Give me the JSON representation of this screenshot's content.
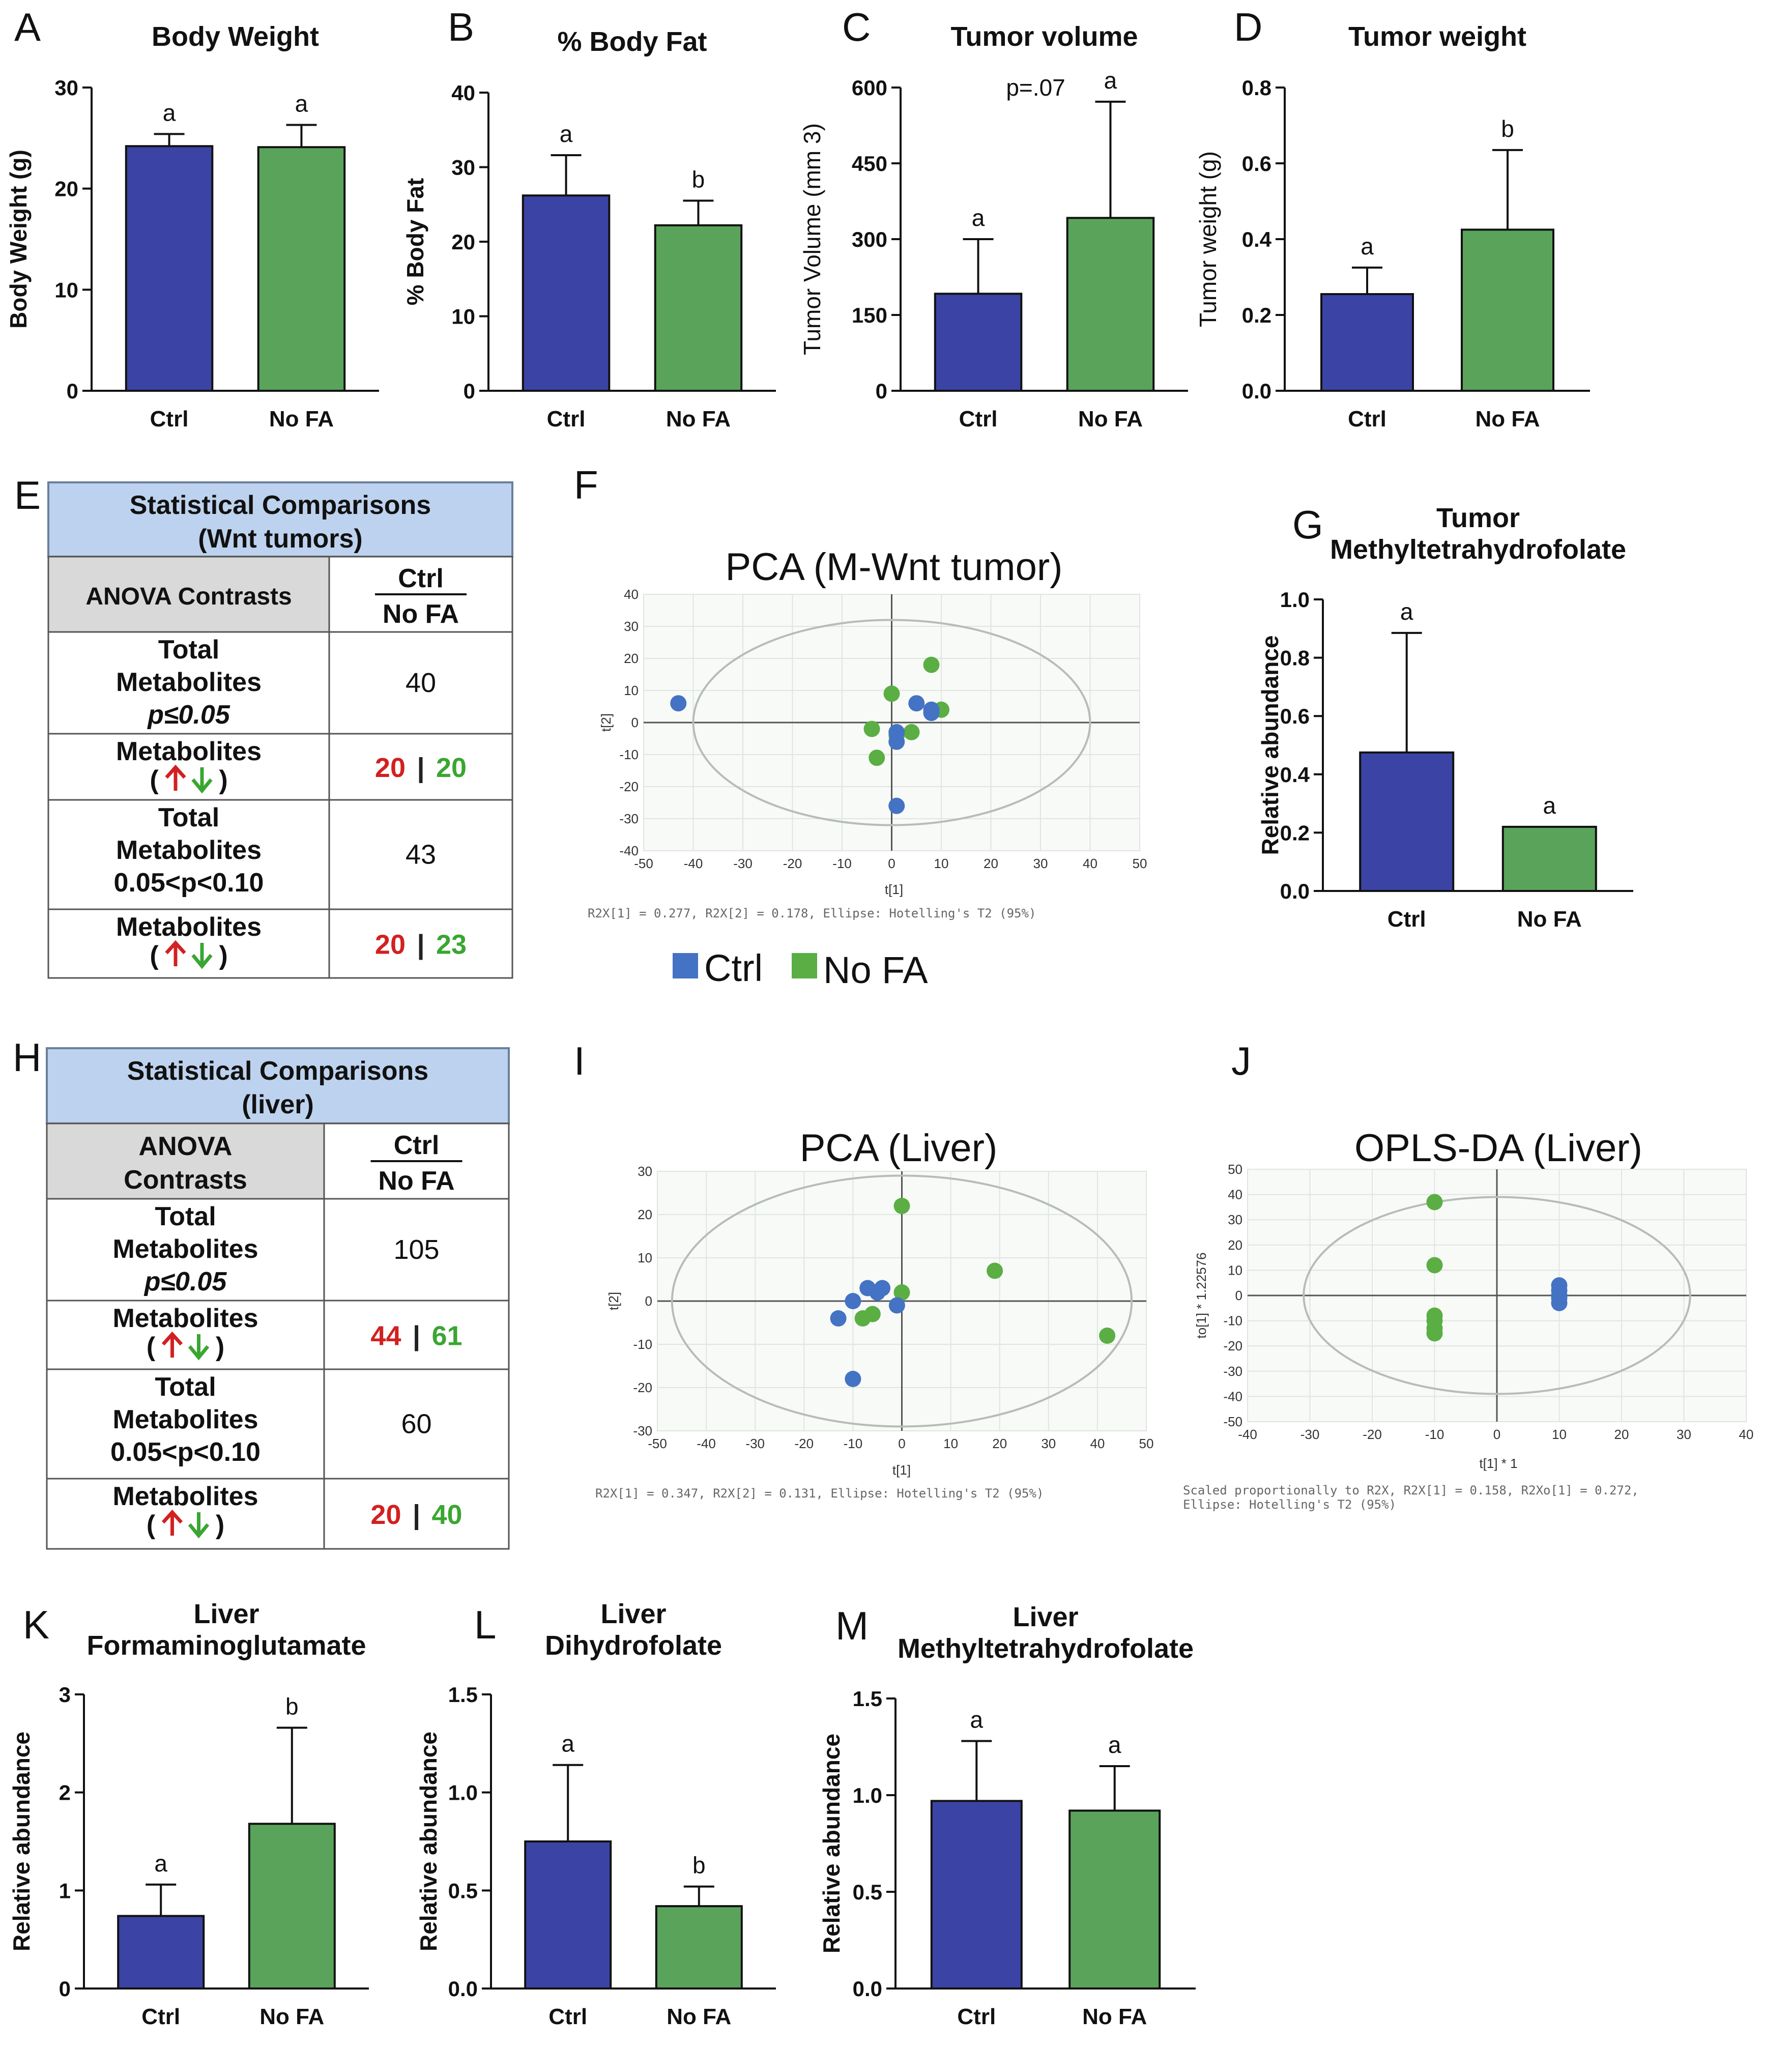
{
  "colors": {
    "ctrl": "#3b44a4",
    "nofa": "#59a45a",
    "ctrl_dot": "#4472c4",
    "nofa_dot": "#5aae44",
    "up_arrow": "#d22020",
    "down_arrow": "#3aa632",
    "table_header": "#bdd2ee",
    "table_grey": "#d9d9d9"
  },
  "bar_panels": [
    {
      "letter": "A",
      "title": "Body Weight",
      "ylabel": "Body Weight (g)",
      "ylabel_bold": true,
      "yticks": [
        "0",
        "10",
        "20",
        "30"
      ],
      "ymax": 30,
      "categories": [
        "Ctrl",
        "No FA"
      ],
      "values": [
        24.2,
        24.1
      ],
      "errors": [
        1.2,
        2.2
      ],
      "sig": [
        "a",
        "a"
      ],
      "extra": ""
    },
    {
      "letter": "B",
      "title": "% Body Fat",
      "ylabel": "% Body Fat",
      "ylabel_bold": true,
      "yticks": [
        "0",
        "10",
        "20",
        "30",
        "40"
      ],
      "ymax": 40,
      "categories": [
        "Ctrl",
        "No FA"
      ],
      "values": [
        26.2,
        22.2
      ],
      "errors": [
        5.4,
        3.3
      ],
      "sig": [
        "a",
        "b"
      ],
      "extra": ""
    },
    {
      "letter": "C",
      "title": "Tumor volume",
      "ylabel": "Tumor Volume (mm 3)",
      "ylabel_bold": false,
      "yticks": [
        "0",
        "150",
        "300",
        "450",
        "600"
      ],
      "ymax": 600,
      "categories": [
        "Ctrl",
        "No FA"
      ],
      "values": [
        192,
        342
      ],
      "errors": [
        108,
        230
      ],
      "sig": [
        "a",
        "a"
      ],
      "extra": "p=.07"
    },
    {
      "letter": "D",
      "title": "Tumor weight",
      "ylabel": "Tumor weight (g)",
      "ylabel_bold": false,
      "yticks": [
        "0.0",
        "0.2",
        "0.4",
        "0.6",
        "0.8"
      ],
      "ymax": 0.8,
      "categories": [
        "Ctrl",
        "No FA"
      ],
      "values": [
        0.255,
        0.425
      ],
      "errors": [
        0.07,
        0.21
      ],
      "sig": [
        "a",
        "b"
      ],
      "extra": ""
    },
    {
      "letter": "G",
      "title": "Tumor",
      "title2": "Methyltetrahydrofolate",
      "ylabel": "Relative abundance",
      "ylabel_bold": true,
      "yticks": [
        "0.0",
        "0.2",
        "0.4",
        "0.6",
        "0.8",
        "1.0"
      ],
      "ymax": 1.0,
      "categories": [
        "Ctrl",
        "No FA"
      ],
      "values": [
        0.475,
        0.22
      ],
      "errors": [
        0.41,
        0.0
      ],
      "sig": [
        "a",
        "a"
      ],
      "extra": ""
    },
    {
      "letter": "K",
      "title": "Liver",
      "title2": "Formaminoglutamate",
      "ylabel": "Relative abundance",
      "ylabel_bold": true,
      "yticks": [
        "0",
        "1",
        "2",
        "3"
      ],
      "ymax": 3,
      "categories": [
        "Ctrl",
        "No FA"
      ],
      "values": [
        0.74,
        1.68
      ],
      "errors": [
        0.32,
        0.98
      ],
      "sig": [
        "a",
        "b"
      ],
      "extra": ""
    },
    {
      "letter": "L",
      "title": "Liver",
      "title2": "Dihydrofolate",
      "ylabel": "Relative abundance",
      "ylabel_bold": true,
      "yticks": [
        "0.0",
        "0.5",
        "1.0",
        "1.5"
      ],
      "ymax": 1.5,
      "categories": [
        "Ctrl",
        "No FA"
      ],
      "values": [
        0.75,
        0.42
      ],
      "errors": [
        0.39,
        0.1
      ],
      "sig": [
        "a",
        "b"
      ],
      "extra": ""
    },
    {
      "letter": "M",
      "title": "Liver",
      "title2": "Methyltetrahydrofolate",
      "ylabel": "Relative abundance",
      "ylabel_bold": true,
      "yticks": [
        "0.0",
        "0.5",
        "1.0",
        "1.5"
      ],
      "ymax": 1.5,
      "categories": [
        "Ctrl",
        "No FA"
      ],
      "values": [
        0.97,
        0.92
      ],
      "errors": [
        0.31,
        0.23
      ],
      "sig": [
        "a",
        "a"
      ],
      "extra": ""
    }
  ],
  "scatter_panels": [
    {
      "letter": "F",
      "title": "PCA (M-Wnt tumor)",
      "xlabel": "t[1]",
      "ylabel": "t[2]",
      "xlim": [
        -50,
        50
      ],
      "ylim": [
        -40,
        40
      ],
      "xstep": 10,
      "ystep": 10,
      "footnote": "R2X[1] = 0.277, R2X[2] = 0.178, Ellipse: Hotelling's T2 (95%)",
      "footnote2": "",
      "ellipse": {
        "cx": 0,
        "cy": 0,
        "rx": 40,
        "ry": 32
      },
      "ctrl": [
        [
          -43,
          6
        ],
        [
          5,
          6
        ],
        [
          1,
          -3
        ],
        [
          1,
          -6
        ],
        [
          8,
          4
        ],
        [
          8,
          3
        ],
        [
          1,
          -26
        ]
      ],
      "nofa": [
        [
          8,
          18
        ],
        [
          0,
          9
        ],
        [
          -4,
          -2
        ],
        [
          10,
          4
        ],
        [
          4,
          -3
        ],
        [
          -3,
          -11
        ],
        [
          1,
          -4
        ]
      ]
    },
    {
      "letter": "I",
      "title": "PCA (Liver)",
      "xlabel": "t[1]",
      "ylabel": "t[2]",
      "xlim": [
        -50,
        50
      ],
      "ylim": [
        -30,
        30
      ],
      "xstep": 10,
      "ystep": 10,
      "footnote": "R2X[1] = 0.347, R2X[2] = 0.131, Ellipse: Hotelling's T2 (95%)",
      "footnote2": "",
      "ellipse": {
        "cx": 0,
        "cy": 0,
        "rx": 47,
        "ry": 29
      },
      "ctrl": [
        [
          -7,
          3
        ],
        [
          -5,
          2
        ],
        [
          -4,
          3
        ],
        [
          -10,
          0
        ],
        [
          -13,
          -4
        ],
        [
          -1,
          -1
        ],
        [
          -10,
          -18
        ]
      ],
      "nofa": [
        [
          0,
          22
        ],
        [
          19,
          7
        ],
        [
          0,
          2
        ],
        [
          -8,
          -4
        ],
        [
          -6,
          -3
        ],
        [
          42,
          -8
        ]
      ]
    },
    {
      "letter": "J",
      "title": "OPLS-DA (Liver)",
      "xlabel": "t[1] * 1",
      "ylabel": "to[1] * 1.22576",
      "xlim": [
        -40,
        40
      ],
      "ylim": [
        -50,
        50
      ],
      "xstep": 10,
      "ystep": 10,
      "footnote": "Scaled proportionally to R2X, R2X[1] = 0.158, R2Xo[1] = 0.272,",
      "footnote2": "Ellipse: Hotelling's T2 (95%)",
      "ellipse": {
        "cx": 0,
        "cy": 0,
        "rx": 31,
        "ry": 39
      },
      "ctrl": [
        [
          10,
          4
        ],
        [
          10,
          2
        ],
        [
          10,
          0
        ],
        [
          10,
          -1
        ],
        [
          10,
          -3
        ]
      ],
      "nofa": [
        [
          -10,
          37
        ],
        [
          -10,
          12
        ],
        [
          -10,
          -8
        ],
        [
          -10,
          -10
        ],
        [
          -10,
          -13
        ],
        [
          -10,
          -15
        ]
      ]
    }
  ],
  "legend": {
    "ctrl": "Ctrl",
    "nofa": "No FA"
  },
  "tables": [
    {
      "letter": "E",
      "header1": "Statistical  Comparisons",
      "header2": "(Wnt tumors)",
      "contrast_label": "ANOVA Contrasts",
      "contrast_label2": "",
      "ctrl_label": "Ctrl",
      "nofa_label": "No FA",
      "rows": [
        {
          "type": "total",
          "l1": "Total",
          "l2": "Metabolites",
          "l3": "p≤0.05",
          "value": "40"
        },
        {
          "type": "dir",
          "l1": "Metabolites",
          "up": "20",
          "down": "20"
        },
        {
          "type": "total",
          "l1": "Total",
          "l2": "Metabolites",
          "l3": "0.05<p<0.10",
          "value": "43"
        },
        {
          "type": "dir",
          "l1": "Metabolites",
          "up": "20",
          "down": "23"
        }
      ]
    },
    {
      "letter": "H",
      "header1": "Statistical  Comparisons",
      "header2": "(liver)",
      "contrast_label": "ANOVA",
      "contrast_label2": "Contrasts",
      "ctrl_label": "Ctrl",
      "nofa_label": "No FA",
      "rows": [
        {
          "type": "total",
          "l1": "Total",
          "l2": "Metabolites",
          "l3": "p≤0.05",
          "value": "105"
        },
        {
          "type": "dir",
          "l1": "Metabolites",
          "up": "44",
          "down": "61"
        },
        {
          "type": "total",
          "l1": "Total",
          "l2": "Metabolites",
          "l3": "0.05<p<0.10",
          "value": "60"
        },
        {
          "type": "dir",
          "l1": "Metabolites",
          "up": "20",
          "down": "40"
        }
      ]
    }
  ],
  "chart_data": [
    {
      "type": "bar",
      "title": "Body Weight",
      "ylabel": "Body Weight (g)",
      "categories": [
        "Ctrl",
        "No FA"
      ],
      "values": [
        24.2,
        24.1
      ],
      "ylim": [
        0,
        30
      ]
    },
    {
      "type": "bar",
      "title": "% Body Fat",
      "ylabel": "% Body Fat",
      "categories": [
        "Ctrl",
        "No FA"
      ],
      "values": [
        26.2,
        22.2
      ],
      "ylim": [
        0,
        40
      ]
    },
    {
      "type": "bar",
      "title": "Tumor volume",
      "ylabel": "Tumor Volume (mm 3)",
      "categories": [
        "Ctrl",
        "No FA"
      ],
      "values": [
        192,
        342
      ],
      "ylim": [
        0,
        600
      ]
    },
    {
      "type": "bar",
      "title": "Tumor weight",
      "ylabel": "Tumor weight (g)",
      "categories": [
        "Ctrl",
        "No FA"
      ],
      "values": [
        0.255,
        0.425
      ],
      "ylim": [
        0,
        0.8
      ]
    },
    {
      "type": "scatter",
      "title": "PCA (M-Wnt tumor)",
      "xlabel": "t[1]",
      "ylabel": "t[2]"
    },
    {
      "type": "bar",
      "title": "Tumor Methyltetrahydrofolate",
      "ylabel": "Relative abundance",
      "categories": [
        "Ctrl",
        "No FA"
      ],
      "values": [
        0.475,
        0.22
      ],
      "ylim": [
        0,
        1.0
      ]
    },
    {
      "type": "scatter",
      "title": "PCA (Liver)",
      "xlabel": "t[1]",
      "ylabel": "t[2]"
    },
    {
      "type": "scatter",
      "title": "OPLS-DA (Liver)",
      "xlabel": "t[1] * 1",
      "ylabel": "to[1] * 1.22576"
    },
    {
      "type": "bar",
      "title": "Liver Formaminoglutamate",
      "ylabel": "Relative abundance",
      "categories": [
        "Ctrl",
        "No FA"
      ],
      "values": [
        0.74,
        1.68
      ],
      "ylim": [
        0,
        3
      ]
    },
    {
      "type": "bar",
      "title": "Liver Dihydrofolate",
      "ylabel": "Relative abundance",
      "categories": [
        "Ctrl",
        "No FA"
      ],
      "values": [
        0.75,
        0.42
      ],
      "ylim": [
        0,
        1.5
      ]
    },
    {
      "type": "bar",
      "title": "Liver Methyltetrahydrofolate",
      "ylabel": "Relative abundance",
      "categories": [
        "Ctrl",
        "No FA"
      ],
      "values": [
        0.97,
        0.92
      ],
      "ylim": [
        0,
        1.5
      ]
    }
  ]
}
